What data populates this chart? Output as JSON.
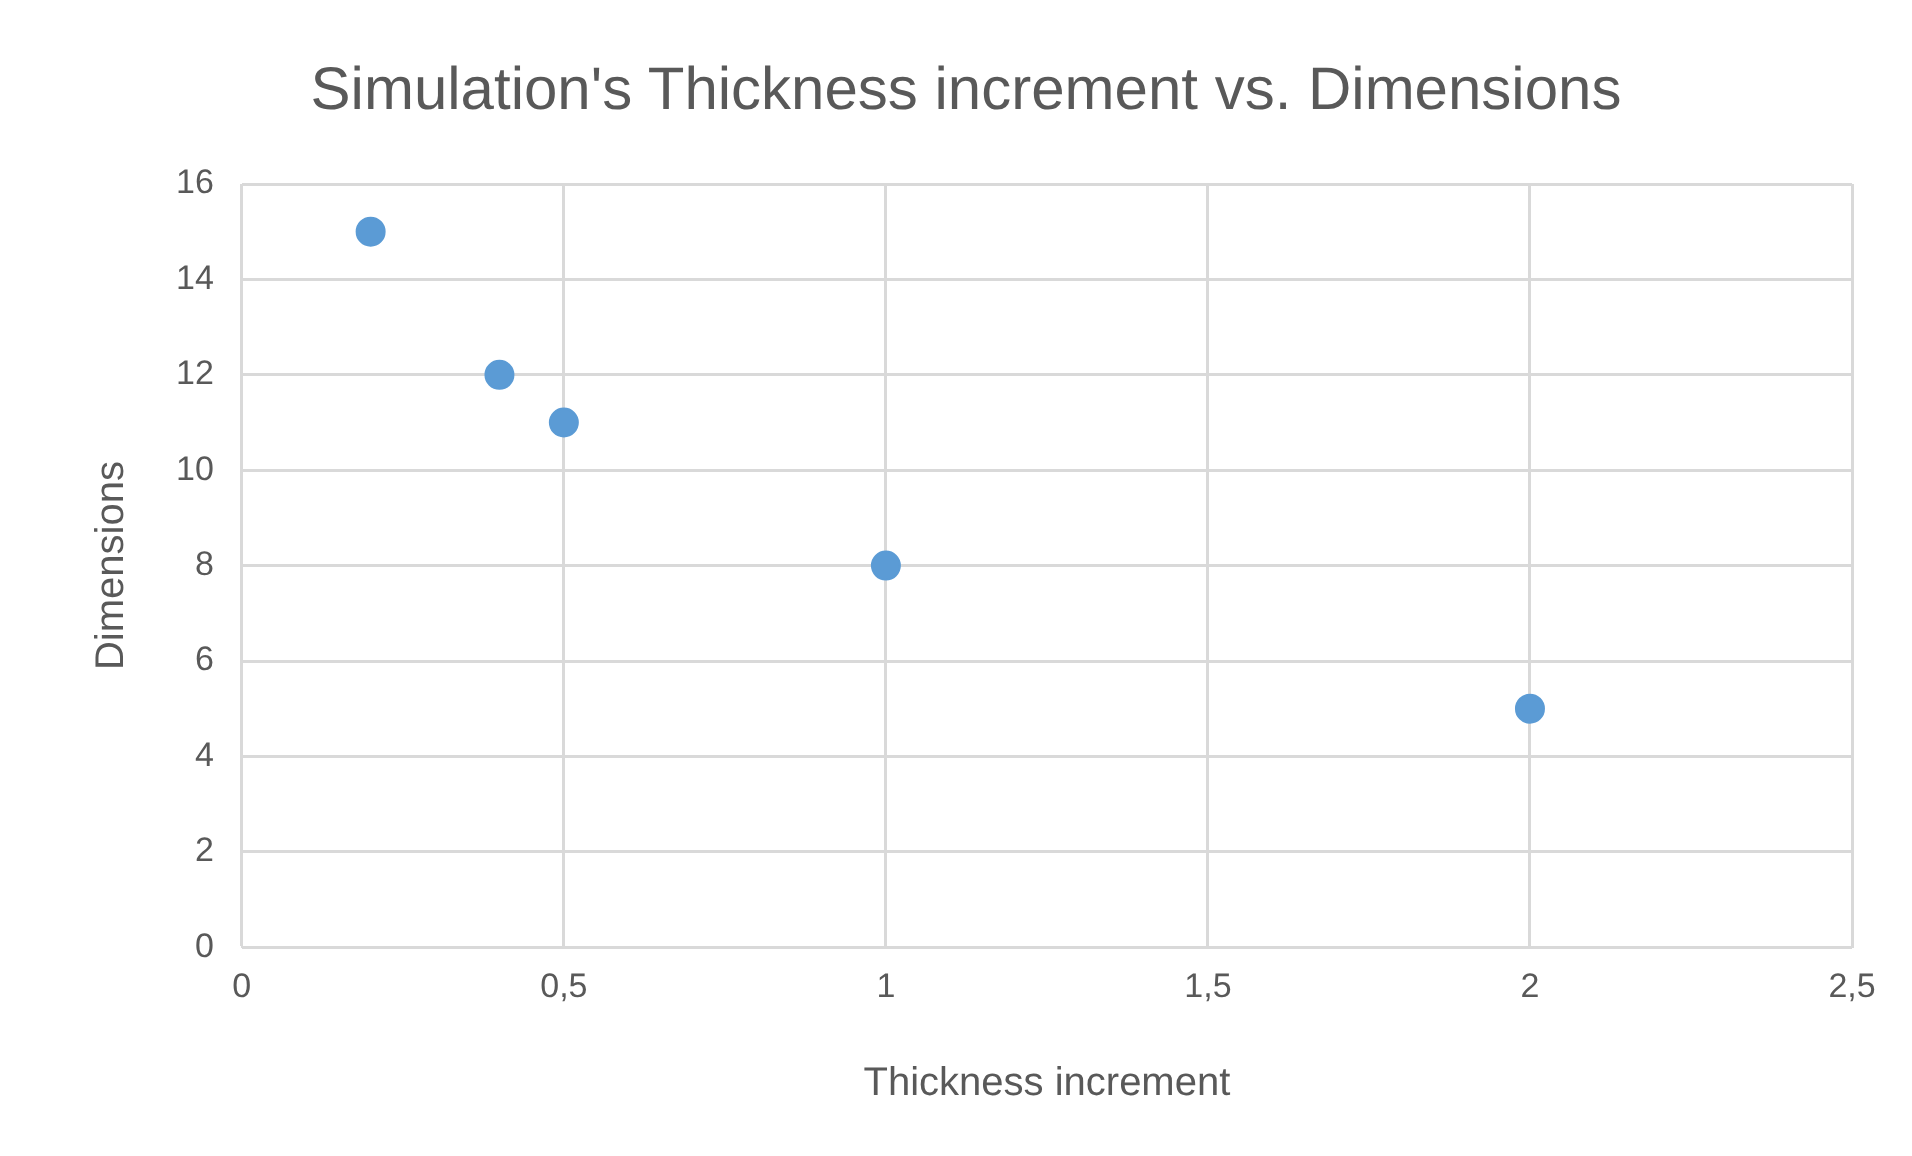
{
  "chart_data": {
    "type": "scatter",
    "title": "Simulation's Thickness increment vs. Dimensions",
    "xlabel": "Thickness increment",
    "ylabel": "Dimensions",
    "x": [
      0.2,
      0.4,
      0.5,
      1,
      2
    ],
    "series": [
      {
        "color": "#5b9bd5",
        "values": [
          15,
          12,
          11,
          8,
          5
        ]
      }
    ],
    "xlim": [
      0,
      2.5
    ],
    "xticks": [
      0,
      {
        "value": 0.5,
        "label": "0,5"
      },
      1,
      {
        "value": 1.5,
        "label": "1,5"
      },
      2,
      {
        "value": 2.5,
        "label": "2,5"
      }
    ],
    "ylim": [
      0,
      16
    ],
    "yticks": [
      0,
      2,
      4,
      6,
      8,
      10,
      12,
      14,
      16
    ],
    "grid": true,
    "legend": false,
    "marker": "circle"
  }
}
